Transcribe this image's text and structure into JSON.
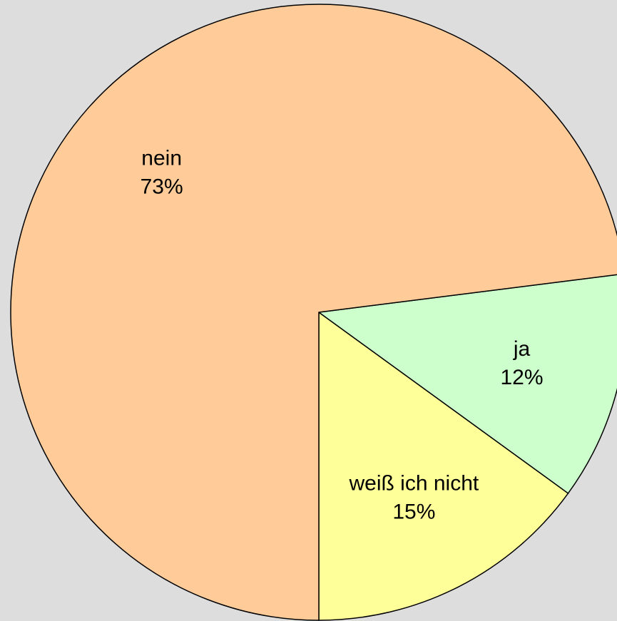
{
  "chart_data": {
    "type": "pie",
    "categories": [
      "weiß ich nicht",
      "ja",
      "nein"
    ],
    "values": [
      15,
      12,
      73
    ],
    "value_labels": [
      "15%",
      "12%",
      "73%"
    ],
    "colors": [
      "#ffff99",
      "#ccffcc",
      "#ffcc99"
    ]
  }
}
